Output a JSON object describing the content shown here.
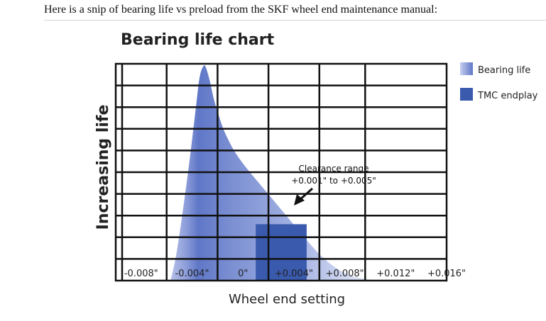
{
  "page": {
    "caption": "Here is a snip of bearing life vs preload from the SKF wheel end maintenance manual:"
  },
  "chart_data": {
    "type": "area",
    "title": "Bearing life chart",
    "xlabel": "Wheel end setting",
    "ylabel": "Increasing life",
    "xlim": [
      -0.01,
      0.016
    ],
    "ylim": [
      0,
      10
    ],
    "x_ticks": [
      -0.008,
      -0.004,
      0,
      0.004,
      0.008,
      0.012,
      0.016
    ],
    "x_tick_labels": [
      "-0.008\"",
      "-0.004\"",
      "0\"",
      "+0.004\"",
      "+0.008\"",
      "+0.012\"",
      "+0.016\""
    ],
    "x_gridlines": [
      -0.0095,
      -0.006,
      -0.002,
      0.002,
      0.006,
      0.0096
    ],
    "y_gridlines": [
      1,
      2,
      3,
      4,
      5,
      6,
      7,
      8,
      9
    ],
    "grid": true,
    "legend_placement": "right",
    "legend": [
      {
        "label": "Bearing life",
        "color": "#8fa1d8"
      },
      {
        "label": "TMC endplay",
        "color": "#3a5aae"
      }
    ],
    "series": [
      {
        "name": "Bearing life",
        "kind": "area",
        "x": [
          -0.0057,
          -0.0053,
          -0.0049,
          -0.0045,
          -0.0041,
          -0.0037,
          -0.0034,
          -0.0031,
          -0.0029,
          -0.0026,
          -0.0023,
          -0.0019,
          -0.0014,
          -0.0006,
          0.0004,
          0.0014,
          0.0024,
          0.0034,
          0.0044,
          0.0054,
          0.0064,
          0.0074,
          0.0084,
          0.0094,
          0.0104,
          0.0116
        ],
        "y": [
          0,
          1.0,
          2.5,
          4.2,
          6.0,
          8.0,
          9.4,
          9.9,
          9.8,
          9.2,
          8.4,
          7.6,
          6.8,
          5.9,
          5.1,
          4.4,
          3.7,
          3.0,
          2.3,
          1.6,
          1.0,
          0.55,
          0.25,
          0.1,
          0.03,
          0
        ]
      },
      {
        "name": "TMC endplay",
        "kind": "bar",
        "x_start": 0.001,
        "x_end": 0.005,
        "y": 2.6
      }
    ],
    "annotations": [
      {
        "text_line1": "Clearance range",
        "text_line2": "+0.001\" to +0.005\"",
        "points_to_x": 0.005,
        "points_to_y": 2.6
      }
    ]
  }
}
